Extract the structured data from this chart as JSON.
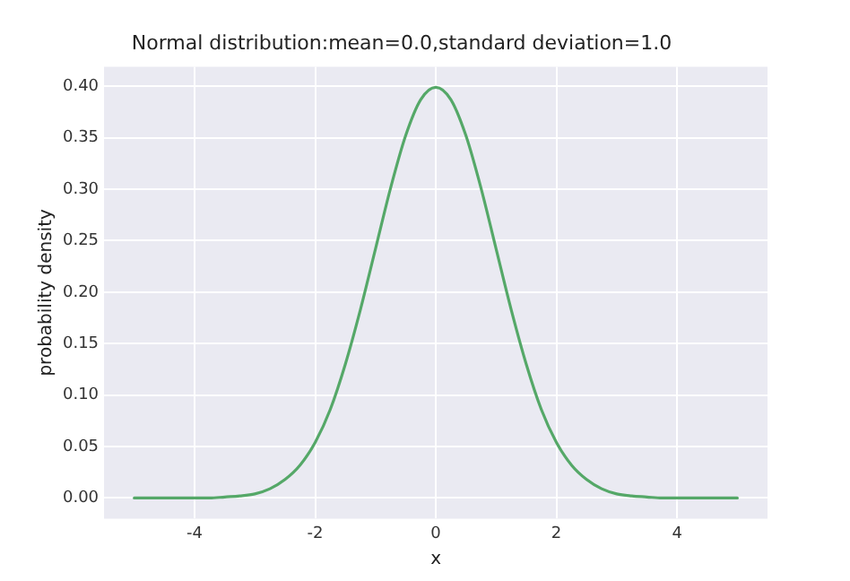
{
  "chart_data": {
    "type": "line",
    "title": "Normal distribution:mean=0.0,standard deviation=1.0",
    "xlabel": "x",
    "ylabel": "probability density",
    "x": [
      -5,
      -4.5,
      -4,
      -3.75,
      -3.5,
      -3.25,
      -3,
      -2.75,
      -2.5,
      -2.25,
      -2,
      -1.75,
      -1.5,
      -1.25,
      -1,
      -0.75,
      -0.5,
      -0.25,
      0,
      0.25,
      0.5,
      0.75,
      1,
      1.25,
      1.5,
      1.75,
      2,
      2.25,
      2.5,
      2.75,
      3,
      3.25,
      3.5,
      3.75,
      4,
      4.5,
      5
    ],
    "series": [
      {
        "color": "#55a868",
        "values": [
          0,
          0,
          0,
          0,
          0.001,
          0.002,
          0.004,
          0.009,
          0.018,
          0.032,
          0.054,
          0.086,
          0.13,
          0.183,
          0.242,
          0.301,
          0.352,
          0.387,
          0.399,
          0.387,
          0.352,
          0.301,
          0.242,
          0.183,
          0.13,
          0.086,
          0.054,
          0.032,
          0.018,
          0.009,
          0.004,
          0.002,
          0.001,
          0,
          0,
          0,
          0
        ]
      }
    ],
    "xlim": [
      -5.5,
      5.5
    ],
    "xticks": [
      -4,
      -2,
      0,
      2,
      4
    ],
    "ylim": [
      -0.02,
      0.419
    ],
    "yticks": [
      {
        "value": 0,
        "label": "0.00"
      },
      {
        "value": 0.05,
        "label": "0.05"
      },
      {
        "value": 0.1,
        "label": "0.10"
      },
      {
        "value": 0.15,
        "label": "0.15"
      },
      {
        "value": 0.2,
        "label": "0.20"
      },
      {
        "value": 0.25,
        "label": "0.25"
      },
      {
        "value": 0.3,
        "label": "0.30"
      },
      {
        "value": 0.35,
        "label": "0.35"
      },
      {
        "value": 0.4,
        "label": "0.40"
      }
    ],
    "grid": true,
    "marker": "none",
    "line_style": "solid"
  }
}
